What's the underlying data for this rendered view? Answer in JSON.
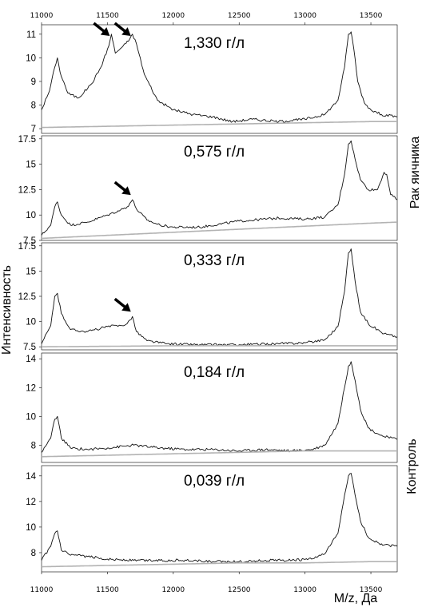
{
  "figure": {
    "ylabel": "Интенсивность",
    "xlabel": "M/z, Да",
    "group_labels": {
      "cancer": "Рак яичника",
      "control": "Контроль"
    }
  },
  "chart_data": [
    {
      "type": "line",
      "concentration": "1,330 г/л",
      "group": "Рак яичника",
      "xlim": [
        11000,
        13700
      ],
      "ylim": [
        6.8,
        11.4
      ],
      "yticks": [
        "7",
        "8",
        "9",
        "10",
        "11"
      ],
      "xticks": [
        "11000",
        "11500",
        "12000",
        "12500",
        "13000",
        "13500"
      ],
      "arrows_at": [
        11530,
        11690
      ],
      "series": [
        {
          "x": [
            11000,
            11060,
            11100,
            11120,
            11140,
            11200,
            11280,
            11380,
            11450,
            11510,
            11530,
            11560,
            11600,
            11640,
            11670,
            11690,
            11720,
            11780,
            11880,
            12000,
            12150,
            12300,
            12450,
            12600,
            12800,
            13000,
            13150,
            13250,
            13300,
            13330,
            13350,
            13370,
            13400,
            13450,
            13500,
            13580,
            13700
          ],
          "y": [
            7.8,
            8.6,
            9.6,
            10.0,
            9.4,
            8.5,
            8.3,
            8.9,
            9.6,
            10.5,
            11.0,
            10.2,
            10.4,
            10.6,
            10.8,
            11.0,
            10.6,
            9.3,
            8.2,
            7.8,
            7.6,
            7.5,
            7.3,
            7.4,
            7.3,
            7.4,
            7.6,
            8.2,
            9.6,
            11.0,
            11.1,
            10.4,
            9.0,
            8.1,
            7.8,
            7.6,
            7.5
          ]
        },
        {
          "x": [
            11000,
            11500,
            12000,
            12500,
            13000,
            13500,
            13700
          ],
          "y": [
            7.05,
            7.1,
            7.15,
            7.2,
            7.25,
            7.3,
            7.3
          ]
        }
      ]
    },
    {
      "type": "line",
      "concentration": "0,575 г/л",
      "group": "Рак яичника",
      "xlim": [
        11000,
        13700
      ],
      "ylim": [
        7.5,
        17.8
      ],
      "yticks": [
        "7.5",
        "10",
        "12.5",
        "15",
        "17.5"
      ],
      "arrows_at": [
        11690
      ],
      "series": [
        {
          "x": [
            11000,
            11070,
            11100,
            11120,
            11150,
            11220,
            11350,
            11500,
            11600,
            11650,
            11690,
            11720,
            11800,
            11900,
            12000,
            12200,
            12500,
            12800,
            13000,
            13150,
            13250,
            13300,
            13330,
            13350,
            13380,
            13420,
            13480,
            13550,
            13600,
            13620,
            13650,
            13700
          ],
          "y": [
            8.0,
            9.0,
            10.8,
            11.3,
            10.0,
            9.0,
            9.3,
            10.0,
            10.5,
            10.8,
            11.5,
            10.6,
            9.5,
            9.0,
            8.8,
            8.8,
            9.4,
            9.7,
            9.6,
            9.8,
            11.0,
            14.0,
            17.0,
            17.3,
            15.5,
            13.5,
            12.5,
            12.5,
            14.2,
            14.0,
            12.0,
            11.5
          ]
        },
        {
          "x": [
            11000,
            11500,
            12000,
            12500,
            13000,
            13500,
            13700
          ],
          "y": [
            7.7,
            8.0,
            8.3,
            8.6,
            8.9,
            9.2,
            9.3
          ]
        }
      ]
    },
    {
      "type": "line",
      "concentration": "0,333 г/л",
      "group": "Рак яичника",
      "xlim": [
        11000,
        13700
      ],
      "ylim": [
        7.2,
        17.8
      ],
      "yticks": [
        "7.5",
        "10",
        "12.5",
        "15",
        "17.5"
      ],
      "arrows_at": [
        11690
      ],
      "series": [
        {
          "x": [
            11000,
            11070,
            11100,
            11120,
            11150,
            11220,
            11350,
            11500,
            11600,
            11650,
            11690,
            11720,
            11800,
            11950,
            12200,
            12500,
            12800,
            13000,
            13150,
            13250,
            13300,
            13330,
            13350,
            13380,
            13420,
            13480,
            13550,
            13600,
            13700
          ],
          "y": [
            7.8,
            9.6,
            12.5,
            12.8,
            10.8,
            9.2,
            9.0,
            9.5,
            9.6,
            9.8,
            10.5,
            9.0,
            8.1,
            7.8,
            7.7,
            7.7,
            7.8,
            7.9,
            8.2,
            9.5,
            13.0,
            16.8,
            17.2,
            14.0,
            11.0,
            9.8,
            9.2,
            8.8,
            8.5
          ]
        },
        {
          "x": [
            11000,
            11500,
            12000,
            12500,
            13000,
            13500,
            13700
          ],
          "y": [
            7.5,
            7.55,
            7.6,
            7.6,
            7.6,
            7.6,
            7.6
          ]
        }
      ]
    },
    {
      "type": "line",
      "concentration": "0,184 г/л",
      "group": "Контроль",
      "xlim": [
        11000,
        13700
      ],
      "ylim": [
        6.8,
        14.4
      ],
      "yticks": [
        "8",
        "10",
        "12",
        "14"
      ],
      "series": [
        {
          "x": [
            11000,
            11070,
            11100,
            11120,
            11150,
            11220,
            11350,
            11500,
            11700,
            11900,
            12100,
            12300,
            12500,
            12700,
            12900,
            13050,
            13150,
            13250,
            13300,
            13330,
            13350,
            13380,
            13420,
            13480,
            13550,
            13600,
            13700
          ],
          "y": [
            7.5,
            8.5,
            9.8,
            10.0,
            8.5,
            7.8,
            7.7,
            7.8,
            8.0,
            7.8,
            7.7,
            7.7,
            7.6,
            7.7,
            7.6,
            7.7,
            8.0,
            9.5,
            12.0,
            13.5,
            13.8,
            12.5,
            10.5,
            9.2,
            8.8,
            8.6,
            8.4
          ]
        },
        {
          "x": [
            11000,
            11500,
            12000,
            12500,
            13000,
            13500,
            13700
          ],
          "y": [
            7.2,
            7.3,
            7.4,
            7.5,
            7.6,
            7.6,
            7.6
          ]
        }
      ]
    },
    {
      "type": "line",
      "concentration": "0,039 г/л",
      "group": "Контроль",
      "xlim": [
        11000,
        13700
      ],
      "ylim": [
        6.5,
        14.8
      ],
      "yticks": [
        "8",
        "10",
        "12",
        "14"
      ],
      "xticks": [
        "11000",
        "11500",
        "12000",
        "12500",
        "13000",
        "13500"
      ],
      "series": [
        {
          "x": [
            11000,
            11070,
            11100,
            11120,
            11150,
            11220,
            11350,
            11500,
            11700,
            11900,
            12100,
            12300,
            12500,
            12700,
            12900,
            13050,
            13150,
            13250,
            13300,
            13330,
            13350,
            13380,
            13420,
            13480,
            13550,
            13600,
            13700
          ],
          "y": [
            7.4,
            8.5,
            9.5,
            9.7,
            8.2,
            7.8,
            7.7,
            7.5,
            7.4,
            7.4,
            7.4,
            7.3,
            7.3,
            7.4,
            7.4,
            7.5,
            7.9,
            9.5,
            12.5,
            14.0,
            14.2,
            12.5,
            10.5,
            9.2,
            8.8,
            8.6,
            8.5
          ]
        },
        {
          "x": [
            11000,
            11500,
            12000,
            12500,
            13000,
            13500,
            13700
          ],
          "y": [
            6.9,
            7.0,
            7.1,
            7.2,
            7.2,
            7.3,
            7.3
          ]
        }
      ]
    }
  ]
}
